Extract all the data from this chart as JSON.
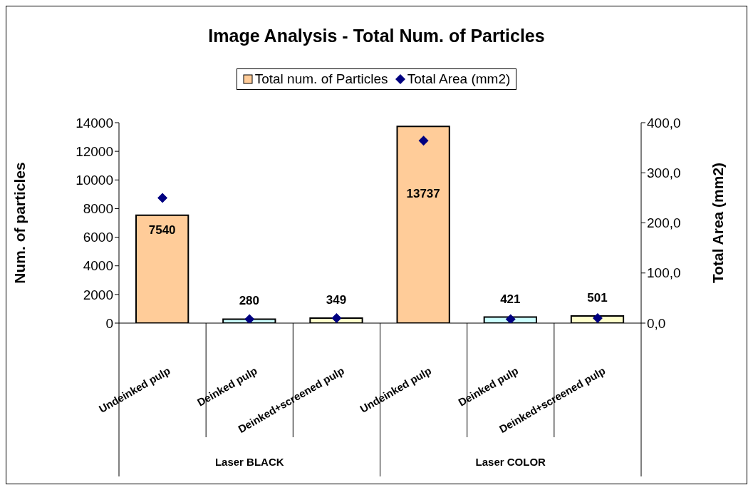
{
  "chart_data": {
    "type": "bar",
    "title": "Image Analysis - Total Num. of Particles",
    "ylabel": "Num. of particles",
    "y2label": "Total Area (mm2)",
    "categories": [
      "Undeinked pulp",
      "Deinked pulp",
      "Deinked+screened pulp",
      "Undeinked pulp",
      "Deinked pulp",
      "Deinked+screened pulp"
    ],
    "series": [
      {
        "name": "Total num. of Particles",
        "color": "#ffcc99",
        "colors": [
          "#ffcc99",
          "#ccffff",
          "#ffffcc",
          "#ffcc99",
          "#ccffff",
          "#ffffcc"
        ],
        "values": [
          7540,
          280,
          349,
          13737,
          421,
          501
        ],
        "value_labels": [
          "7540",
          "280",
          "349",
          "13737",
          "421",
          "501"
        ]
      },
      {
        "name": "Total Area (mm2)",
        "type": "scatter",
        "axis": "y2",
        "color": "#000080",
        "marker": "diamond",
        "values": [
          250,
          8,
          10,
          364,
          8,
          10
        ]
      }
    ],
    "ylim": [
      0,
      14000
    ],
    "yticks": [
      0,
      2000,
      4000,
      6000,
      8000,
      10000,
      12000,
      14000
    ],
    "y2lim": [
      0,
      400
    ],
    "y2ticks": [
      {
        "value": 0,
        "label": "0,0"
      },
      {
        "value": 100,
        "label": "100,0"
      },
      {
        "value": 200,
        "label": "200,0"
      },
      {
        "value": 300,
        "label": "300,0"
      },
      {
        "value": 400,
        "label": "400,0"
      }
    ],
    "annotations": [
      "Laser BLACK",
      "Laser COLOR"
    ],
    "legend": "top",
    "grid": false
  }
}
